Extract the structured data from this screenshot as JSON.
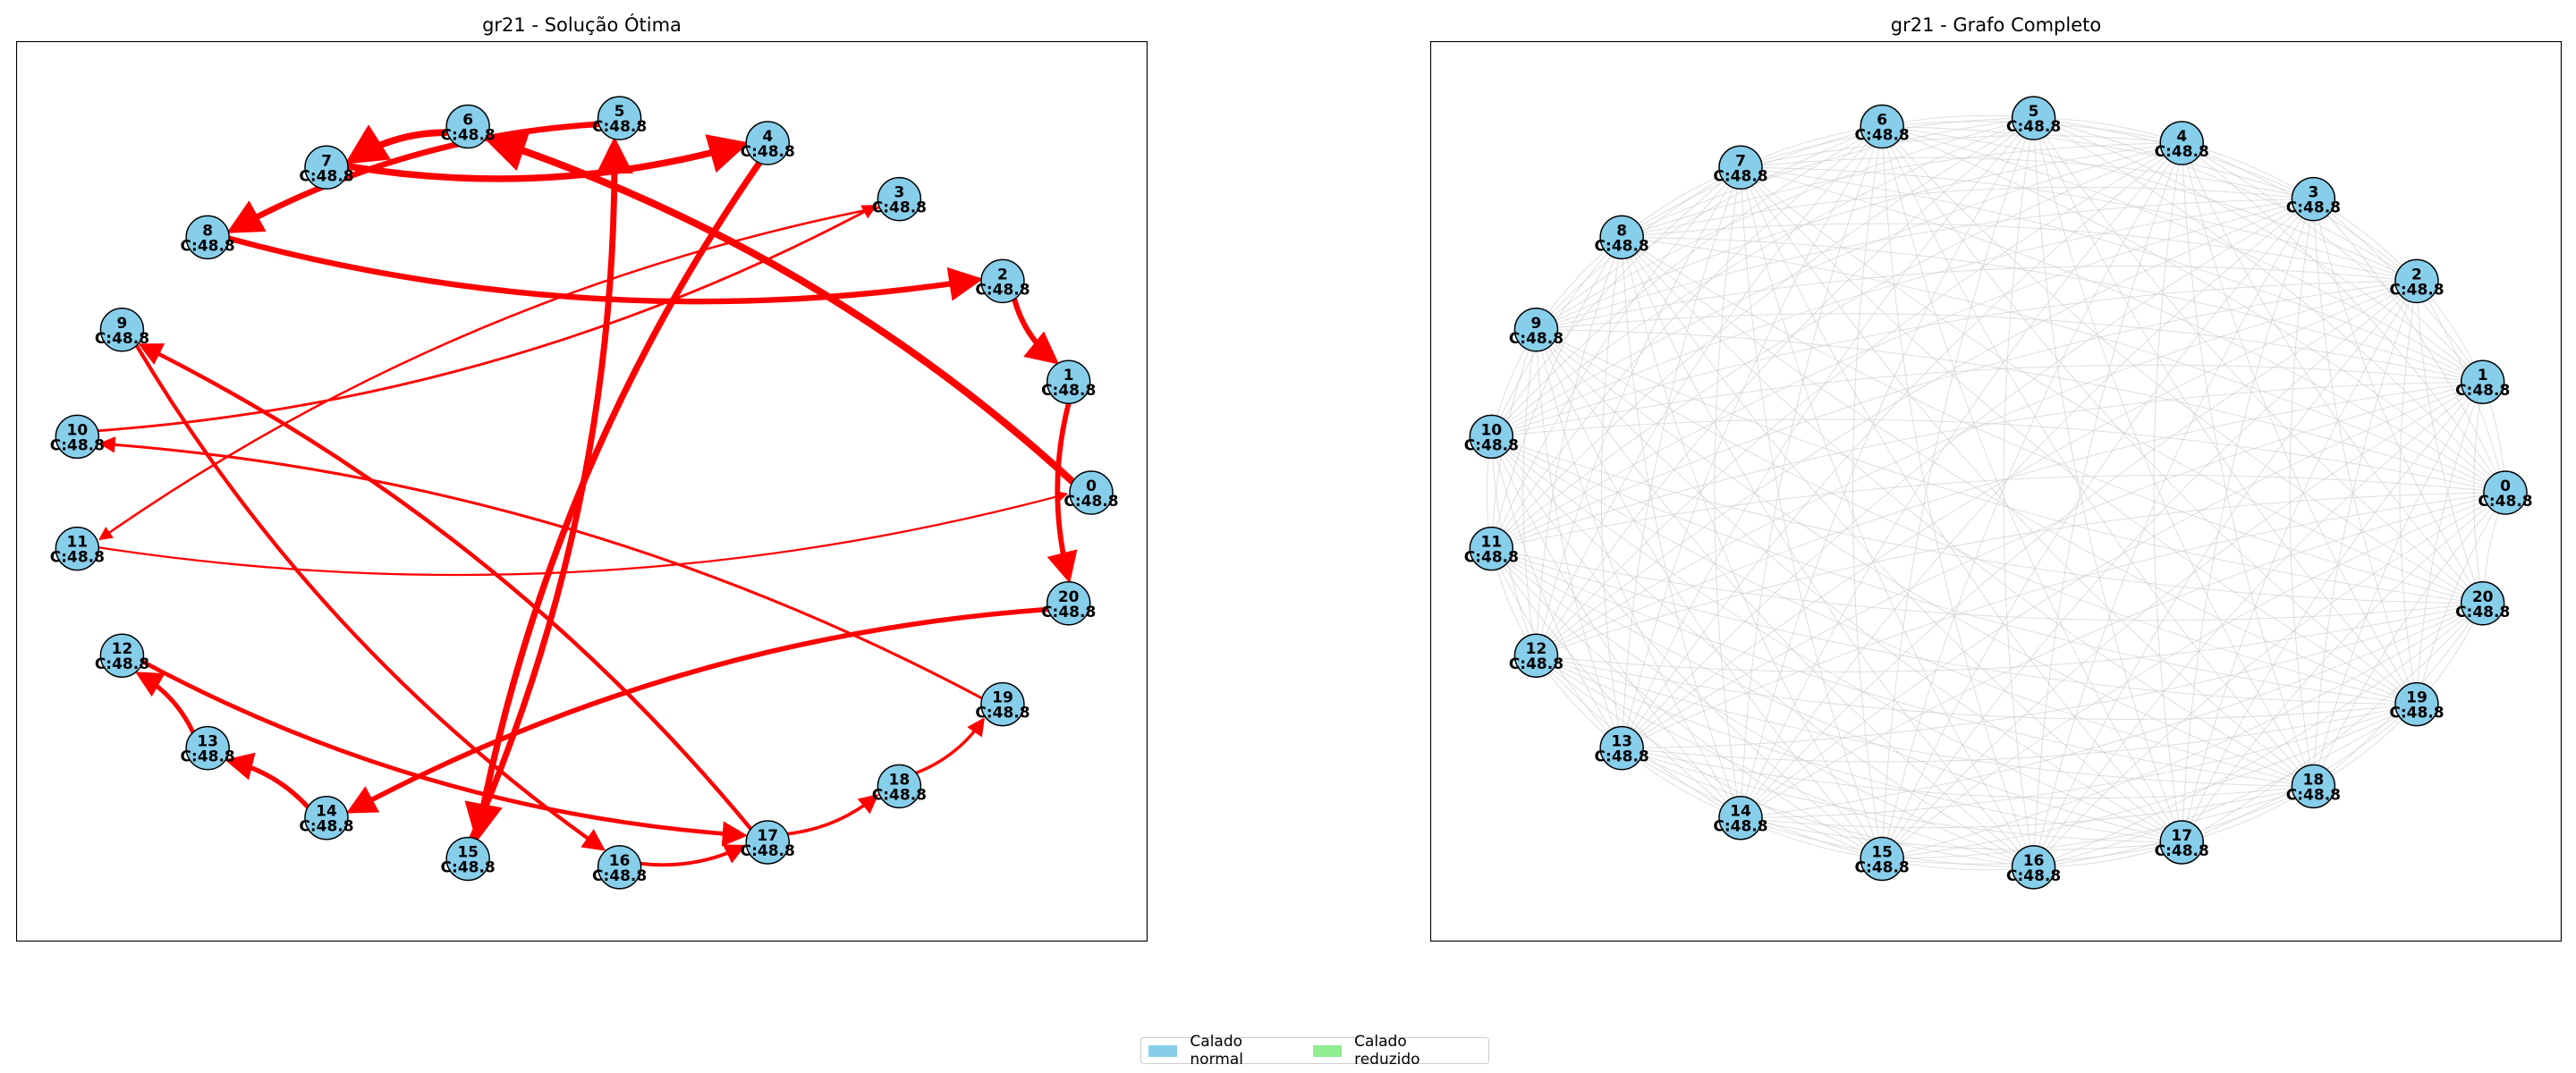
{
  "panels": {
    "left_title": "gr21 - Solução Ótima",
    "right_title": "gr21 - Grafo Completo"
  },
  "nodes": [
    {
      "id": "0",
      "label": "C:48.8"
    },
    {
      "id": "1",
      "label": "C:48.8"
    },
    {
      "id": "2",
      "label": "C:48.8"
    },
    {
      "id": "3",
      "label": "C:48.8"
    },
    {
      "id": "4",
      "label": "C:48.8"
    },
    {
      "id": "5",
      "label": "C:48.8"
    },
    {
      "id": "6",
      "label": "C:48.8"
    },
    {
      "id": "7",
      "label": "C:48.8"
    },
    {
      "id": "8",
      "label": "C:48.8"
    },
    {
      "id": "9",
      "label": "C:48.8"
    },
    {
      "id": "10",
      "label": "C:48.8"
    },
    {
      "id": "11",
      "label": "C:48.8"
    },
    {
      "id": "12",
      "label": "C:48.8"
    },
    {
      "id": "13",
      "label": "C:48.8"
    },
    {
      "id": "14",
      "label": "C:48.8"
    },
    {
      "id": "15",
      "label": "C:48.8"
    },
    {
      "id": "16",
      "label": "C:48.8"
    },
    {
      "id": "17",
      "label": "C:48.8"
    },
    {
      "id": "18",
      "label": "C:48.8"
    },
    {
      "id": "19",
      "label": "C:48.8"
    },
    {
      "id": "20",
      "label": "C:48.8"
    }
  ],
  "solution_edges": [
    [
      "0",
      "6"
    ],
    [
      "6",
      "7"
    ],
    [
      "7",
      "4"
    ],
    [
      "4",
      "15"
    ],
    [
      "15",
      "5"
    ],
    [
      "5",
      "8"
    ],
    [
      "8",
      "2"
    ],
    [
      "2",
      "1"
    ],
    [
      "1",
      "20"
    ],
    [
      "20",
      "14"
    ],
    [
      "14",
      "13"
    ],
    [
      "13",
      "12"
    ],
    [
      "12",
      "17"
    ],
    [
      "17",
      "9"
    ],
    [
      "9",
      "16"
    ],
    [
      "16",
      "17"
    ],
    [
      "17",
      "18"
    ],
    [
      "18",
      "19"
    ],
    [
      "19",
      "10"
    ],
    [
      "10",
      "3"
    ],
    [
      "3",
      "11"
    ],
    [
      "11",
      "0"
    ]
  ],
  "colors": {
    "node_fill": "#87ceeb",
    "solution_edge": "#ff0000",
    "complete_edge": "#d3d3d3"
  },
  "legend": [
    {
      "label": "Calado normal",
      "color": "#87ceeb"
    },
    {
      "label": "Calado reduzido",
      "color": "#90ee90"
    }
  ]
}
